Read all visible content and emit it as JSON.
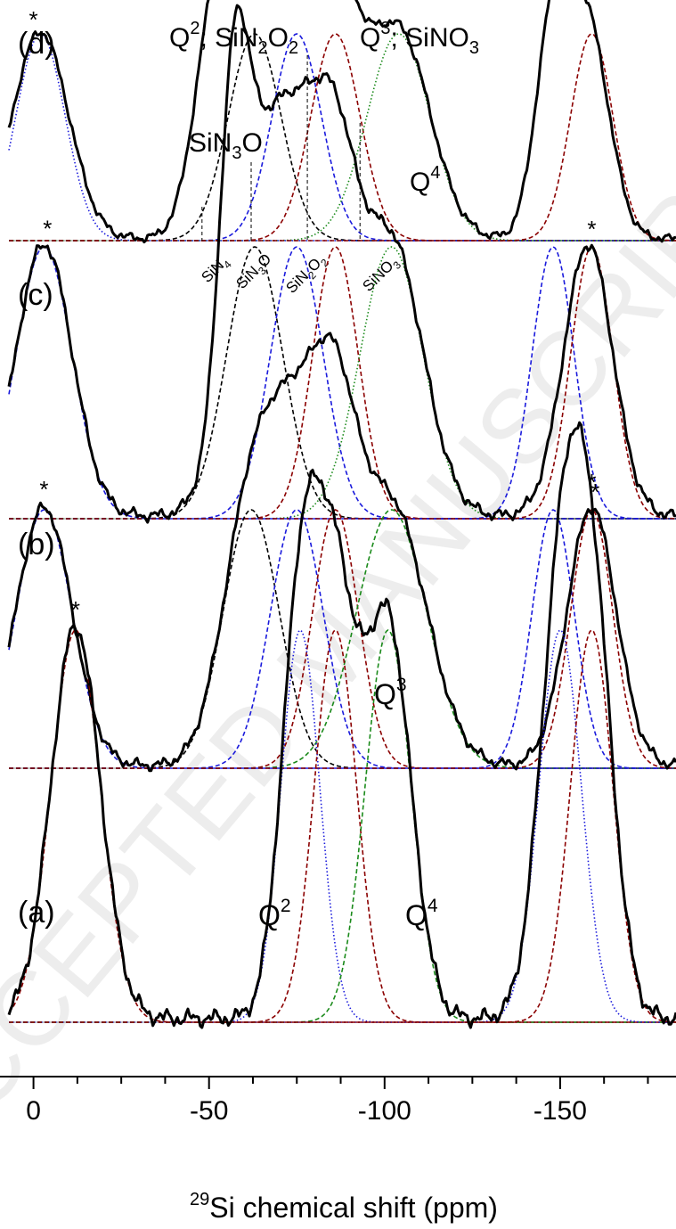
{
  "watermark": "ACCEPTED MANUSCRIPT",
  "chart_data": {
    "type": "line",
    "xlabel": "29Si chemical shift (ppm)",
    "xlabel_superscript": "29",
    "xlabel_rest": "Si chemical shift (ppm)",
    "xlim": [
      7,
      -183
    ],
    "x_ticks": [
      0,
      -50,
      -100,
      -150
    ],
    "x_tick_labels": [
      "0",
      "-50",
      "-100",
      "-150"
    ],
    "x_minor_step": 12.5,
    "colors": {
      "experimental": "#000000",
      "Q2": "#1a1adc",
      "Q3": "#8b0000",
      "Q4": "#1a8a1a",
      "nitride": "#000000"
    },
    "panels": [
      {
        "label": "(d)",
        "peak_labels": [
          {
            "base": "Q",
            "sup": "2",
            "rest": "; SiN",
            "sub1": "2",
            "rest2": "O",
            "sub2": "2",
            "x": -60
          },
          {
            "base": "Q",
            "sup": "3",
            "rest": "; SiNO",
            "sub1": "3",
            "rest2": "",
            "sub2": "",
            "x": -98
          },
          {
            "base": "SiN",
            "sup": "",
            "rest": "",
            "sub1": "3",
            "rest2": "O",
            "sub2": "",
            "x": -40
          },
          {
            "base": "Q",
            "sup": "4",
            "rest": "",
            "sub1": "",
            "rest2": "",
            "sub2": "",
            "x": -104
          }
        ],
        "reference_marks": [
          {
            "base": "SiN",
            "sub": "4",
            "rest": "",
            "x": -48
          },
          {
            "base": "SiN",
            "sub": "3",
            "rest": "O",
            "x": -62
          },
          {
            "base": "SiN",
            "sub": "2",
            "rest": "O",
            "sub2": "2",
            "x": -78
          },
          {
            "base": "SiNO",
            "sub": "3",
            "rest": "",
            "x": -93
          }
        ],
        "sideband_marks": [
          {
            "x": 0
          },
          {
            "x": -159
          }
        ],
        "components": [
          {
            "name": "SiN3O",
            "type": "dash",
            "color": "nitride",
            "center": -63,
            "height": 0.22,
            "width": 7.5
          },
          {
            "name": "Q2",
            "type": "dash",
            "color": "Q2",
            "center": -75,
            "height": 0.81,
            "width": 7.0
          },
          {
            "name": "Q3",
            "type": "dash",
            "color": "Q3",
            "center": -86,
            "height": 1.0,
            "width": 7.0
          },
          {
            "name": "Q4",
            "type": "dot",
            "color": "Q4",
            "center": -104,
            "height": 0.18,
            "width": 9.0
          },
          {
            "name": "ssb-left",
            "type": "dot",
            "color": "Q2",
            "center": -2,
            "height": 0.07,
            "width": 7
          },
          {
            "name": "ssb-right",
            "type": "dash",
            "color": "Q3",
            "center": -159,
            "height": 0.12,
            "width": 6
          }
        ],
        "envelope_extra": [
          {
            "center": -2,
            "height": 0.09,
            "width": 8
          },
          {
            "center": -158,
            "height": 0.13,
            "width": 6
          },
          {
            "center": -148,
            "height": 0.03,
            "width": 5
          },
          {
            "center": -52,
            "height": 0.04,
            "width": 6
          }
        ]
      },
      {
        "label": "(c)",
        "sideband_marks": [
          {
            "x": -4
          },
          {
            "x": -159
          }
        ],
        "components": [
          {
            "name": "SiN3O",
            "type": "dash",
            "color": "nitride",
            "center": -63,
            "height": 0.12,
            "width": 8
          },
          {
            "name": "Q2",
            "type": "dash",
            "color": "Q2",
            "center": -75,
            "height": 0.73,
            "width": 7.5
          },
          {
            "name": "Q3",
            "type": "dash",
            "color": "Q3",
            "center": -86,
            "height": 0.9,
            "width": 6.5
          },
          {
            "name": "Q4",
            "type": "dot",
            "color": "Q4",
            "center": -102,
            "height": 0.1,
            "width": 9
          },
          {
            "name": "ssb-left",
            "type": "dash",
            "color": "Q2",
            "center": -3,
            "height": 0.04,
            "width": 8
          },
          {
            "name": "ssb-right-a",
            "type": "dash",
            "color": "Q2",
            "center": -148,
            "height": 0.06,
            "width": 6
          },
          {
            "name": "ssb-right-b",
            "type": "dash",
            "color": "Q3",
            "center": -159,
            "height": 0.09,
            "width": 6
          }
        ],
        "envelope_extra": [
          {
            "center": -3,
            "height": 0.05,
            "width": 8
          },
          {
            "center": -158,
            "height": 0.08,
            "width": 7
          },
          {
            "center": -57,
            "height": 0.04,
            "width": 4
          }
        ]
      },
      {
        "label": "(b)",
        "sideband_marks": [
          {
            "x": -3
          },
          {
            "x": -160
          }
        ],
        "components": [
          {
            "name": "SiN3O",
            "type": "dash",
            "color": "nitride",
            "center": -62,
            "height": 0.12,
            "width": 8
          },
          {
            "name": "Q2",
            "type": "dash",
            "color": "Q2",
            "center": -75,
            "height": 0.7,
            "width": 7.5
          },
          {
            "name": "Q3",
            "type": "dash",
            "color": "Q3",
            "center": -86,
            "height": 0.9,
            "width": 6.5
          },
          {
            "name": "Q4",
            "type": "dash",
            "color": "Q4",
            "center": -102,
            "height": 0.16,
            "width": 10
          },
          {
            "name": "ssb-left",
            "type": "dash",
            "color": "Q2",
            "center": -3,
            "height": 0.04,
            "width": 8
          },
          {
            "name": "ssb-right-a",
            "type": "dash",
            "color": "Q2",
            "center": -148,
            "height": 0.04,
            "width": 6
          },
          {
            "name": "ssb-right-b",
            "type": "dash",
            "color": "Q3",
            "center": -159,
            "height": 0.08,
            "width": 6
          }
        ],
        "envelope_extra": [
          {
            "center": -3,
            "height": 0.05,
            "width": 8
          },
          {
            "center": -159,
            "height": 0.07,
            "width": 7
          }
        ]
      },
      {
        "label": "(a)",
        "peak_labels": [
          {
            "base": "Q",
            "sup": "3",
            "x": -92
          },
          {
            "base": "Q",
            "sup": "2",
            "x": -65
          },
          {
            "base": "Q",
            "sup": "4",
            "x": -102
          }
        ],
        "sideband_marks": [
          {
            "x": -12
          },
          {
            "x": -159
          }
        ],
        "components": [
          {
            "name": "Q2",
            "type": "dot",
            "color": "Q2",
            "center": -76,
            "height": 0.35,
            "width": 5.5
          },
          {
            "name": "Q3",
            "type": "dash",
            "color": "Q3",
            "center": -86,
            "height": 1.0,
            "width": 6.0
          },
          {
            "name": "Q4",
            "type": "dash",
            "color": "Q4",
            "center": -101,
            "height": 0.25,
            "width": 6.5
          },
          {
            "name": "ssb-left",
            "type": "dash",
            "color": "Q3",
            "center": -12,
            "height": 0.08,
            "width": 7
          },
          {
            "name": "ssb-right-a",
            "type": "dot",
            "color": "Q2",
            "center": -150,
            "height": 0.03,
            "width": 6
          },
          {
            "name": "ssb-right-b",
            "type": "dash",
            "color": "Q3",
            "center": -159,
            "height": 0.11,
            "width": 6
          }
        ],
        "envelope_extra": [
          {
            "center": -12,
            "height": 0.09,
            "width": 7
          },
          {
            "center": -159,
            "height": 0.13,
            "width": 6
          },
          {
            "center": -150,
            "height": 0.03,
            "width": 6
          }
        ]
      }
    ]
  }
}
